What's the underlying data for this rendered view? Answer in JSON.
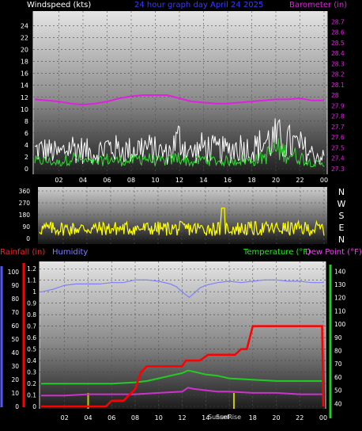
{
  "header": {
    "windspeed_label": "Windspeed (kts)",
    "title": "24 hour graph day   April 24 2025",
    "barometer_label": "Barometer (in)",
    "rainfall_label": "Rainfall (in)",
    "humidity_label": "Humidity",
    "temperature_label": "Temperature (°F)",
    "dewpoint_label": "Dew Point (°F)",
    "sunset_label": "Sunset",
    "sunrise_label": "SunRise"
  },
  "colors": {
    "background": "#000000",
    "windspeed_text": "#ffffff",
    "title_text": "#3a3aff",
    "barometer": "#e020e0",
    "wind_gust": "#ffffff",
    "wind_avg": "#33dd33",
    "wind_dir": "#ffff00",
    "rain": "#ff0000",
    "humidity": "#7f7fff",
    "temperature": "#22cc22",
    "dewpoint": "#cc33cc",
    "sun_marker": "#cccc00"
  },
  "chart_data": [
    {
      "type": "line",
      "name": "wind-barometer",
      "x_ticks": [
        "02",
        "04",
        "06",
        "08",
        "10",
        "12",
        "14",
        "16",
        "18",
        "20",
        "22",
        "00"
      ],
      "y_left_ticks": [
        "0",
        "2",
        "4",
        "6",
        "8",
        "10",
        "12",
        "14",
        "16",
        "18",
        "20",
        "22",
        "24"
      ],
      "y_left_range": [
        0,
        25
      ],
      "y_right_ticks": [
        "27.3",
        "27.4",
        "27.5",
        "27.6",
        "27.7",
        "27.8",
        "27.9",
        "28",
        "28.1",
        "28.2",
        "28.3",
        "28.4",
        "28.5",
        "28.6",
        "28.7"
      ],
      "y_right_range": [
        27.3,
        28.8
      ],
      "barometer": {
        "hours": [
          0,
          1,
          2,
          3,
          4,
          5,
          6,
          7,
          8,
          9,
          10,
          11,
          12,
          13,
          14,
          15,
          16,
          17,
          18,
          19,
          20,
          21,
          22,
          23,
          24
        ],
        "values": [
          27.96,
          27.95,
          27.94,
          27.92,
          27.91,
          27.92,
          27.94,
          27.97,
          27.99,
          28.0,
          28.0,
          28.0,
          27.97,
          27.94,
          27.93,
          27.92,
          27.92,
          27.93,
          27.94,
          27.95,
          27.96,
          27.96,
          27.97,
          27.95,
          27.95
        ]
      },
      "wind_gust_envelope": {
        "hours": [
          0,
          1,
          2,
          3,
          4,
          5,
          6,
          7,
          8,
          9,
          10,
          11,
          12,
          13,
          14,
          15,
          16,
          17,
          18,
          19,
          20,
          21,
          22,
          23,
          24
        ],
        "values": [
          5,
          5,
          4,
          6,
          5,
          4,
          6,
          5,
          5,
          6,
          5,
          4,
          8,
          4,
          6,
          5,
          5,
          6,
          5,
          7,
          8,
          7,
          6,
          4,
          3
        ]
      },
      "wind_avg_envelope": {
        "hours": [
          0,
          1,
          2,
          3,
          4,
          5,
          6,
          7,
          8,
          9,
          10,
          11,
          12,
          13,
          14,
          15,
          16,
          17,
          18,
          19,
          20,
          21,
          22,
          23,
          24
        ],
        "values": [
          2,
          2,
          1.5,
          3,
          2,
          1.5,
          2.5,
          2,
          2,
          3,
          2,
          2,
          3,
          1.5,
          2.5,
          2,
          2,
          2.5,
          2,
          3,
          5,
          4,
          3,
          1.5,
          1
        ]
      }
    },
    {
      "type": "scatter",
      "name": "wind-direction",
      "x_ticks": [
        "02",
        "04",
        "06",
        "08",
        "10",
        "12",
        "14",
        "16",
        "18",
        "20",
        "22",
        "00"
      ],
      "y_ticks": [
        "0",
        "90",
        "180",
        "270",
        "360"
      ],
      "y_range": [
        0,
        360
      ],
      "direction_labels": [
        "N",
        "W",
        "S",
        "E",
        "N"
      ],
      "typical_band_deg": [
        20,
        130
      ],
      "spike": {
        "hour": 15.5,
        "deg": 230
      }
    },
    {
      "type": "line",
      "name": "rain-humidity-temp-dew",
      "x_ticks": [
        "02",
        "04",
        "06",
        "08",
        "10",
        "12",
        "14",
        "16",
        "18",
        "20",
        "22",
        "00"
      ],
      "rain_ticks": [
        "0",
        "0.1",
        "0.2",
        "0.3",
        "0.4",
        "0.5",
        "0.6",
        "0.7",
        "0.8",
        "0.9",
        "1",
        "1.1",
        "1.2"
      ],
      "rain_range": [
        0,
        1.25
      ],
      "humidity_ticks": [
        "0",
        "10",
        "20",
        "30",
        "40",
        "50",
        "60",
        "70",
        "80",
        "90",
        "100"
      ],
      "humidity_range": [
        0,
        103
      ],
      "temp_ticks": [
        "40",
        "50",
        "60",
        "70",
        "80",
        "90",
        "100",
        "110",
        "120",
        "130",
        "140"
      ],
      "temp_range": [
        30,
        145
      ],
      "rainfall": {
        "hours": [
          0,
          5.5,
          6,
          7,
          7.5,
          8,
          8.5,
          9,
          11,
          12,
          12.3,
          12.8,
          13.5,
          14.2,
          14.8,
          15.5,
          16.5,
          17,
          17.5,
          18,
          18.5,
          23.9,
          24
        ],
        "values": [
          0,
          0,
          0.05,
          0.05,
          0.1,
          0.15,
          0.3,
          0.35,
          0.35,
          0.35,
          0.4,
          0.4,
          0.4,
          0.45,
          0.45,
          0.45,
          0.45,
          0.5,
          0.5,
          0.7,
          0.7,
          0.7,
          0
        ]
      },
      "humidity": {
        "hours": [
          0,
          1,
          2,
          3,
          4,
          5,
          6,
          7,
          8,
          9,
          10,
          11,
          11.5,
          12,
          12.6,
          13,
          13.5,
          14,
          15,
          16,
          17,
          18,
          19,
          20,
          21,
          22,
          23,
          24
        ],
        "values": [
          85,
          87,
          90,
          91,
          91,
          91,
          92,
          92,
          94,
          94,
          93,
          91,
          89,
          85,
          81,
          84,
          88,
          90,
          92,
          93,
          92,
          93,
          94,
          94,
          93,
          93,
          92,
          92
        ]
      },
      "temperature": {
        "hours": [
          0,
          2,
          4,
          6,
          8,
          9,
          10,
          11,
          12,
          12.5,
          13,
          14,
          15,
          16,
          18,
          20,
          22,
          24
        ],
        "values": [
          55,
          55,
          55,
          55,
          56,
          57,
          59,
          61,
          63,
          65,
          64,
          62,
          61,
          59,
          58,
          57,
          57,
          57
        ]
      },
      "dewpoint": {
        "hours": [
          0,
          2,
          4,
          6,
          8,
          10,
          12,
          12.5,
          13,
          14,
          15,
          16,
          18,
          20,
          22,
          24
        ],
        "values": [
          46,
          46,
          47,
          47,
          47,
          48,
          49,
          52,
          51,
          50,
          49,
          49,
          48,
          48,
          47,
          47
        ]
      },
      "sunrise_hour": 4,
      "sunset_hour": 16.4
    }
  ]
}
